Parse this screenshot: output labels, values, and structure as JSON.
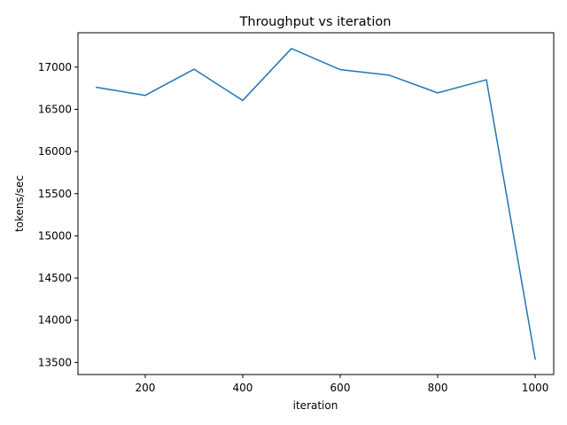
{
  "chart_data": {
    "type": "line",
    "title": "Throughput vs iteration",
    "xlabel": "iteration",
    "ylabel": "tokens/sec",
    "xlim": [
      62,
      1038
    ],
    "ylim": [
      13357,
      17407
    ],
    "xticks": [
      200,
      400,
      600,
      800,
      1000
    ],
    "yticks": [
      13500,
      14000,
      14500,
      15000,
      15500,
      16000,
      16500,
      17000
    ],
    "grid": false,
    "series": [
      {
        "color": "#1f77b4",
        "x": [
          100,
          200,
          300,
          400,
          500,
          600,
          700,
          800,
          900,
          1000
        ],
        "y": [
          16760,
          16665,
          16975,
          16605,
          17220,
          16970,
          16905,
          16695,
          16850,
          13540
        ]
      }
    ]
  }
}
